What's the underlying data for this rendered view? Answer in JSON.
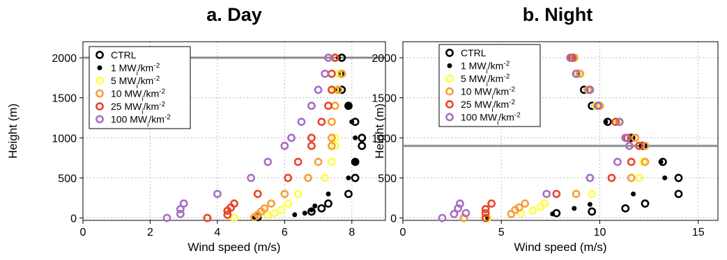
{
  "chart_data": [
    {
      "type": "scatter",
      "title": "a. Day",
      "xlabel": "Wind speed (m/s)",
      "ylabel": "Height (m)",
      "xlim": [
        0,
        9
      ],
      "ylim": [
        -30,
        2200
      ],
      "xticks": [
        0,
        2,
        4,
        6,
        8
      ],
      "yticks": [
        0,
        500,
        1000,
        1500,
        2000
      ],
      "grid": true,
      "legend_position": "top-left",
      "hline": 2000,
      "series": [
        {
          "name": "CTRL",
          "color": "#000000",
          "marker": "ring",
          "points": [
            [
              5.2,
              10
            ],
            [
              6.8,
              80
            ],
            [
              7.1,
              120
            ],
            [
              7.3,
              180
            ],
            [
              7.9,
              300
            ],
            [
              8.1,
              500
            ],
            [
              8.1,
              700
            ],
            [
              8.3,
              900
            ],
            [
              8.3,
              1000
            ],
            [
              8.1,
              1200
            ],
            [
              7.9,
              1400
            ],
            [
              7.7,
              1600
            ],
            [
              7.7,
              1800
            ],
            [
              7.7,
              2000
            ]
          ]
        },
        {
          "name": "1 MWi/km-2",
          "color": "#000000",
          "marker": "dot",
          "points": [
            [
              5.1,
              0
            ],
            [
              6.3,
              40
            ],
            [
              6.6,
              60
            ],
            [
              6.8,
              100
            ],
            [
              6.9,
              150
            ],
            [
              7.3,
              300
            ],
            [
              7.9,
              500
            ],
            [
              8.1,
              700
            ],
            [
              8.1,
              1000
            ],
            [
              8.0,
              1200
            ],
            [
              7.9,
              1400
            ],
            [
              7.6,
              1600
            ],
            [
              7.7,
              1800
            ],
            [
              7.6,
              2000
            ]
          ]
        },
        {
          "name": "5 MWi/km-2",
          "color": "#ffff44",
          "marker": "ring",
          "points": [
            [
              4.5,
              0
            ],
            [
              5.5,
              40
            ],
            [
              5.7,
              60
            ],
            [
              5.9,
              100
            ],
            [
              6.1,
              180
            ],
            [
              6.4,
              300
            ],
            [
              7.2,
              500
            ],
            [
              7.4,
              700
            ],
            [
              7.5,
              900
            ],
            [
              7.5,
              1000
            ],
            [
              7.4,
              1200
            ],
            [
              7.5,
              1400
            ],
            [
              7.5,
              1600
            ],
            [
              7.6,
              1800
            ],
            [
              7.5,
              2000
            ]
          ]
        },
        {
          "name": "10 MWi/km-2",
          "color": "#f5a03c",
          "marker": "ring",
          "points": [
            [
              5.1,
              10
            ],
            [
              5.2,
              40
            ],
            [
              5.3,
              80
            ],
            [
              5.4,
              120
            ],
            [
              5.6,
              180
            ],
            [
              6.0,
              300
            ],
            [
              6.7,
              500
            ],
            [
              7.0,
              700
            ],
            [
              7.4,
              900
            ],
            [
              7.4,
              1000
            ],
            [
              7.4,
              1200
            ],
            [
              7.5,
              1400
            ],
            [
              7.6,
              1600
            ],
            [
              7.7,
              1800
            ],
            [
              7.5,
              2000
            ]
          ]
        },
        {
          "name": "25 MWi/km-2",
          "color": "#e8452c",
          "marker": "ring",
          "points": [
            [
              3.7,
              0
            ],
            [
              4.3,
              40
            ],
            [
              4.3,
              90
            ],
            [
              4.4,
              130
            ],
            [
              4.5,
              180
            ],
            [
              5.2,
              300
            ],
            [
              6.1,
              500
            ],
            [
              6.4,
              700
            ],
            [
              6.8,
              900
            ],
            [
              6.8,
              1000
            ],
            [
              7.1,
              1200
            ],
            [
              7.3,
              1400
            ],
            [
              7.4,
              1600
            ],
            [
              7.4,
              1800
            ],
            [
              7.5,
              2000
            ]
          ]
        },
        {
          "name": "100 MWi/km-2",
          "color": "#a66fc2",
          "marker": "ring",
          "points": [
            [
              2.5,
              0
            ],
            [
              2.9,
              50
            ],
            [
              2.9,
              110
            ],
            [
              3.0,
              180
            ],
            [
              4.0,
              300
            ],
            [
              5.0,
              500
            ],
            [
              5.5,
              700
            ],
            [
              6.0,
              900
            ],
            [
              6.2,
              1000
            ],
            [
              6.5,
              1200
            ],
            [
              6.8,
              1400
            ],
            [
              7.0,
              1600
            ],
            [
              7.2,
              1800
            ],
            [
              7.3,
              2000
            ]
          ]
        }
      ]
    },
    {
      "type": "scatter",
      "title": "b. Night",
      "xlabel": "Wind speed (m/s)",
      "ylabel": "Height (m)",
      "xlim": [
        0,
        16
      ],
      "ylim": [
        -30,
        2200
      ],
      "xticks": [
        0,
        5,
        10,
        15
      ],
      "yticks": [
        0,
        500,
        1000,
        1500,
        2000
      ],
      "grid": true,
      "legend_position": "top-left",
      "hline": 900,
      "series": [
        {
          "name": "CTRL",
          "color": "#000000",
          "marker": "ring",
          "points": [
            [
              4.3,
              0
            ],
            [
              7.8,
              60
            ],
            [
              9.6,
              80
            ],
            [
              11.3,
              120
            ],
            [
              12.3,
              180
            ],
            [
              14.0,
              300
            ],
            [
              14.0,
              500
            ],
            [
              13.2,
              700
            ],
            [
              12.2,
              900
            ],
            [
              11.6,
              1000
            ],
            [
              10.4,
              1200
            ],
            [
              9.6,
              1400
            ],
            [
              9.2,
              1600
            ],
            [
              8.9,
              1800
            ],
            [
              8.7,
              2000
            ]
          ]
        },
        {
          "name": "1 MWi/km-2",
          "color": "#000000",
          "marker": "dot",
          "points": [
            [
              4.3,
              0
            ],
            [
              7.6,
              50
            ],
            [
              8.7,
              120
            ],
            [
              9.5,
              170
            ],
            [
              11.7,
              300
            ],
            [
              13.3,
              500
            ],
            [
              13.1,
              700
            ],
            [
              12.1,
              900
            ],
            [
              11.6,
              1000
            ],
            [
              10.3,
              1200
            ],
            [
              9.7,
              1400
            ],
            [
              9.3,
              1600
            ],
            [
              8.8,
              1800
            ],
            [
              8.6,
              2000
            ]
          ]
        },
        {
          "name": "5 MWi/km-2",
          "color": "#ffff44",
          "marker": "ring",
          "points": [
            [
              4.3,
              0
            ],
            [
              6.0,
              60
            ],
            [
              6.6,
              90
            ],
            [
              7.0,
              140
            ],
            [
              7.2,
              180
            ],
            [
              9.6,
              300
            ],
            [
              12.0,
              500
            ],
            [
              12.2,
              700
            ],
            [
              12.0,
              900
            ],
            [
              11.8,
              1000
            ],
            [
              10.9,
              1200
            ],
            [
              9.8,
              1400
            ],
            [
              9.4,
              1600
            ],
            [
              8.9,
              1800
            ],
            [
              8.7,
              2000
            ]
          ]
        },
        {
          "name": "10 MWi/km-2",
          "color": "#f5a03c",
          "marker": "ring",
          "points": [
            [
              3.1,
              0
            ],
            [
              5.5,
              50
            ],
            [
              5.7,
              100
            ],
            [
              5.9,
              130
            ],
            [
              6.2,
              180
            ],
            [
              8.8,
              300
            ],
            [
              11.6,
              500
            ],
            [
              12.3,
              700
            ],
            [
              12.3,
              900
            ],
            [
              11.8,
              1000
            ],
            [
              11.0,
              1200
            ],
            [
              10.0,
              1400
            ],
            [
              9.4,
              1600
            ],
            [
              9.0,
              1800
            ],
            [
              8.7,
              2000
            ]
          ]
        },
        {
          "name": "25 MWi/km-2",
          "color": "#e8452c",
          "marker": "ring",
          "points": [
            [
              4.2,
              0
            ],
            [
              4.2,
              60
            ],
            [
              4.2,
              110
            ],
            [
              4.5,
              180
            ],
            [
              7.8,
              300
            ],
            [
              10.6,
              500
            ],
            [
              11.6,
              700
            ],
            [
              12.0,
              900
            ],
            [
              11.4,
              1000
            ],
            [
              10.8,
              1200
            ],
            [
              9.9,
              1400
            ],
            [
              9.5,
              1600
            ],
            [
              8.8,
              1800
            ],
            [
              8.6,
              2000
            ]
          ]
        },
        {
          "name": "100 MWi/km-2",
          "color": "#a66fc2",
          "marker": "ring",
          "points": [
            [
              2.0,
              0
            ],
            [
              2.6,
              50
            ],
            [
              3.2,
              60
            ],
            [
              2.8,
              120
            ],
            [
              2.9,
              180
            ],
            [
              7.3,
              300
            ],
            [
              9.5,
              500
            ],
            [
              10.9,
              700
            ],
            [
              11.5,
              900
            ],
            [
              11.3,
              1000
            ],
            [
              11.0,
              1200
            ],
            [
              9.9,
              1400
            ],
            [
              9.5,
              1600
            ],
            [
              8.8,
              1800
            ],
            [
              8.5,
              2000
            ]
          ]
        }
      ]
    }
  ]
}
